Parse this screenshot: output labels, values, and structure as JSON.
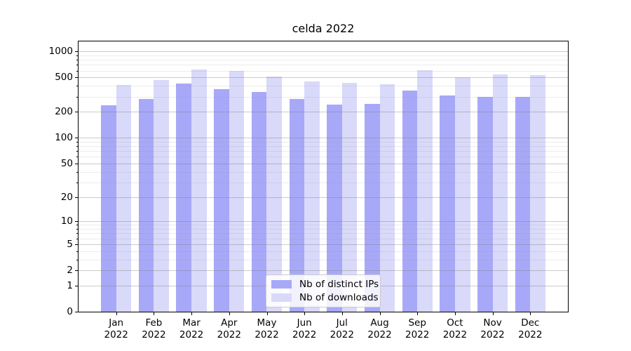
{
  "title": "celda 2022",
  "chart_data": {
    "type": "bar",
    "title": "celda 2022",
    "categories": [
      "Jan 2022",
      "Feb 2022",
      "Mar 2022",
      "Apr 2022",
      "May 2022",
      "Jun 2022",
      "Jul 2022",
      "Aug 2022",
      "Sep 2022",
      "Oct 2022",
      "Nov 2022",
      "Dec 2022"
    ],
    "series": [
      {
        "name": "Nb of distinct IPs",
        "color": "#a8a8f8",
        "values": [
          237,
          280,
          428,
          365,
          340,
          284,
          243,
          246,
          355,
          310,
          296,
          297
        ]
      },
      {
        "name": "Nb of downloads",
        "color": "#d9d9fa",
        "values": [
          408,
          465,
          618,
          595,
          516,
          450,
          430,
          415,
          605,
          507,
          541,
          535
        ]
      }
    ],
    "yscale": "log1p",
    "ylim": [
      0,
      1300
    ],
    "yticks": [
      0,
      1,
      2,
      5,
      10,
      20,
      50,
      100,
      200,
      500,
      1000
    ],
    "minor_yticks": [
      3,
      4,
      6,
      7,
      8,
      9,
      30,
      40,
      60,
      70,
      80,
      90,
      300,
      400,
      600,
      700,
      800,
      900
    ],
    "grid": "both",
    "legend_position": "inside lower center",
    "xlabel": "",
    "ylabel": ""
  }
}
